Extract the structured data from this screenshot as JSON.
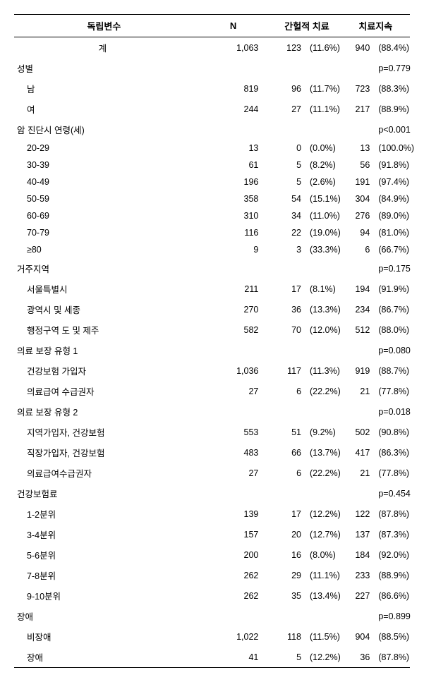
{
  "header": {
    "col1": "독립변수",
    "col2": "N",
    "col3": "간헐적 치료",
    "col4": "치료지속"
  },
  "rows": [
    {
      "type": "total",
      "label": "계",
      "n": "1,063",
      "int_n": "123",
      "int_p": "(11.6%)",
      "cont_n": "940",
      "cont_p": "(88.4%)"
    },
    {
      "type": "group",
      "label": "성별",
      "pval": "p=0.779"
    },
    {
      "type": "sub",
      "label": "남",
      "n": "819",
      "int_n": "96",
      "int_p": "(11.7%)",
      "cont_n": "723",
      "cont_p": "(88.3%)"
    },
    {
      "type": "sub",
      "label": "여",
      "n": "244",
      "int_n": "27",
      "int_p": "(11.1%)",
      "cont_n": "217",
      "cont_p": "(88.9%)"
    },
    {
      "type": "group",
      "label": "암 진단시 연령(세)",
      "pval": "p<0.001"
    },
    {
      "type": "sub",
      "label": "20-29",
      "n": "13",
      "int_n": "0",
      "int_p": "(0.0%)",
      "cont_n": "13",
      "cont_p": "(100.0%)"
    },
    {
      "type": "sub",
      "label": "30-39",
      "n": "61",
      "int_n": "5",
      "int_p": "(8.2%)",
      "cont_n": "56",
      "cont_p": "(91.8%)"
    },
    {
      "type": "sub",
      "label": "40-49",
      "n": "196",
      "int_n": "5",
      "int_p": "(2.6%)",
      "cont_n": "191",
      "cont_p": "(97.4%)"
    },
    {
      "type": "sub",
      "label": "50-59",
      "n": "358",
      "int_n": "54",
      "int_p": "(15.1%)",
      "cont_n": "304",
      "cont_p": "(84.9%)"
    },
    {
      "type": "sub",
      "label": "60-69",
      "n": "310",
      "int_n": "34",
      "int_p": "(11.0%)",
      "cont_n": "276",
      "cont_p": "(89.0%)"
    },
    {
      "type": "sub",
      "label": "70-79",
      "n": "116",
      "int_n": "22",
      "int_p": "(19.0%)",
      "cont_n": "94",
      "cont_p": "(81.0%)"
    },
    {
      "type": "sub",
      "label": "≥80",
      "n": "9",
      "int_n": "3",
      "int_p": "(33.3%)",
      "cont_n": "6",
      "cont_p": "(66.7%)"
    },
    {
      "type": "group",
      "label": "거주지역",
      "pval": "p=0.175"
    },
    {
      "type": "sub",
      "label": "서울특별시",
      "n": "211",
      "int_n": "17",
      "int_p": "(8.1%)",
      "cont_n": "194",
      "cont_p": "(91.9%)"
    },
    {
      "type": "sub",
      "label": "광역시 및 세종",
      "n": "270",
      "int_n": "36",
      "int_p": "(13.3%)",
      "cont_n": "234",
      "cont_p": "(86.7%)"
    },
    {
      "type": "sub",
      "label": "행정구역 도 및 제주",
      "n": "582",
      "int_n": "70",
      "int_p": "(12.0%)",
      "cont_n": "512",
      "cont_p": "(88.0%)"
    },
    {
      "type": "group",
      "label": "의료 보장 유형 1",
      "pval": "p=0.080"
    },
    {
      "type": "sub",
      "label": "건강보험 가입자",
      "n": "1,036",
      "int_n": "117",
      "int_p": "(11.3%)",
      "cont_n": "919",
      "cont_p": "(88.7%)"
    },
    {
      "type": "sub",
      "label": "의료급여 수급권자",
      "n": "27",
      "int_n": "6",
      "int_p": "(22.2%)",
      "cont_n": "21",
      "cont_p": "(77.8%)"
    },
    {
      "type": "group",
      "label": "의료 보장 유형 2",
      "pval": "p=0.018"
    },
    {
      "type": "sub",
      "label": "지역가입자, 건강보험",
      "n": "553",
      "int_n": "51",
      "int_p": "(9.2%)",
      "cont_n": "502",
      "cont_p": "(90.8%)"
    },
    {
      "type": "sub",
      "label": "직장가입자, 건강보험",
      "n": "483",
      "int_n": "66",
      "int_p": "(13.7%)",
      "cont_n": "417",
      "cont_p": "(86.3%)"
    },
    {
      "type": "sub",
      "label": "의료급여수급권자",
      "n": "27",
      "int_n": "6",
      "int_p": "(22.2%)",
      "cont_n": "21",
      "cont_p": "(77.8%)"
    },
    {
      "type": "group",
      "label": "건강보험료",
      "pval": "p=0.454"
    },
    {
      "type": "sub",
      "label": "1-2분위",
      "n": "139",
      "int_n": "17",
      "int_p": "(12.2%)",
      "cont_n": "122",
      "cont_p": "(87.8%)"
    },
    {
      "type": "sub",
      "label": "3-4분위",
      "n": "157",
      "int_n": "20",
      "int_p": "(12.7%)",
      "cont_n": "137",
      "cont_p": "(87.3%)"
    },
    {
      "type": "sub",
      "label": "5-6분위",
      "n": "200",
      "int_n": "16",
      "int_p": "(8.0%)",
      "cont_n": "184",
      "cont_p": "(92.0%)"
    },
    {
      "type": "sub",
      "label": "7-8분위",
      "n": "262",
      "int_n": "29",
      "int_p": "(11.1%)",
      "cont_n": "233",
      "cont_p": "(88.9%)"
    },
    {
      "type": "sub",
      "label": "9-10분위",
      "n": "262",
      "int_n": "35",
      "int_p": "(13.4%)",
      "cont_n": "227",
      "cont_p": "(86.6%)"
    },
    {
      "type": "group",
      "label": "장애",
      "pval": "p=0.899"
    },
    {
      "type": "sub",
      "label": "비장애",
      "n": "1,022",
      "int_n": "118",
      "int_p": "(11.5%)",
      "cont_n": "904",
      "cont_p": "(88.5%)"
    },
    {
      "type": "sub",
      "label": "장애",
      "n": "41",
      "int_n": "5",
      "int_p": "(12.2%)",
      "cont_n": "36",
      "cont_p": "(87.8%)"
    }
  ]
}
